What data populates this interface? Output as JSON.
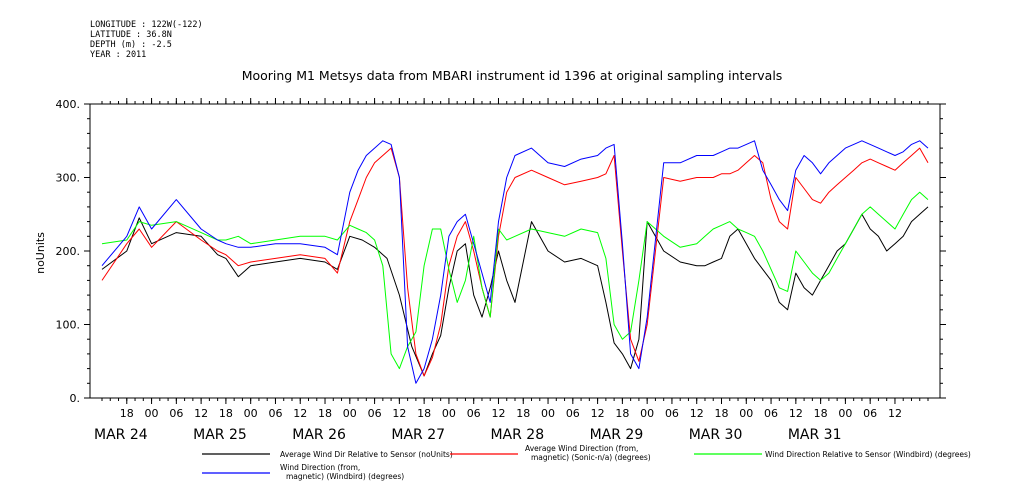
{
  "header": {
    "longitude": "LONGITUDE : 122W(-122)",
    "latitude": "LATITUDE : 36.8N",
    "depth": "DEPTH (m) : -2.5",
    "year": "YEAR : 2011"
  },
  "chart_data": {
    "type": "line",
    "title": "Mooring M1 Metsys data from MBARI instrument id 1396 at original sampling intervals",
    "ylabel": "noUnits",
    "ylim": [
      0,
      400
    ],
    "yticks": [
      0,
      100,
      200,
      300,
      400
    ],
    "ytick_labels": [
      "0.",
      "100.",
      "200.",
      "300.",
      "400."
    ],
    "xlim_hours": [
      0,
      200
    ],
    "x_hour_ticks": [
      {
        "h": 6,
        "label": "18"
      },
      {
        "h": 12,
        "label": "00"
      },
      {
        "h": 18,
        "label": "06"
      },
      {
        "h": 24,
        "label": "12"
      },
      {
        "h": 30,
        "label": "18"
      },
      {
        "h": 36,
        "label": "00"
      },
      {
        "h": 42,
        "label": "06"
      },
      {
        "h": 48,
        "label": "12"
      },
      {
        "h": 54,
        "label": "18"
      },
      {
        "h": 60,
        "label": "00"
      },
      {
        "h": 66,
        "label": "06"
      },
      {
        "h": 72,
        "label": "12"
      },
      {
        "h": 78,
        "label": "18"
      },
      {
        "h": 84,
        "label": "00"
      },
      {
        "h": 90,
        "label": "06"
      },
      {
        "h": 96,
        "label": "12"
      },
      {
        "h": 102,
        "label": "18"
      },
      {
        "h": 108,
        "label": "00"
      },
      {
        "h": 114,
        "label": "06"
      },
      {
        "h": 120,
        "label": "12"
      },
      {
        "h": 126,
        "label": "18"
      },
      {
        "h": 132,
        "label": "00"
      },
      {
        "h": 138,
        "label": "06"
      },
      {
        "h": 144,
        "label": "12"
      },
      {
        "h": 150,
        "label": "18"
      },
      {
        "h": 156,
        "label": "00"
      },
      {
        "h": 162,
        "label": "06"
      },
      {
        "h": 168,
        "label": "12"
      },
      {
        "h": 174,
        "label": "18"
      },
      {
        "h": 180,
        "label": "00"
      },
      {
        "h": 186,
        "label": "06"
      },
      {
        "h": 192,
        "label": "12"
      }
    ],
    "x_date_labels": [
      {
        "h": 0,
        "label": "MAR 24"
      },
      {
        "h": 24,
        "label": "MAR 25"
      },
      {
        "h": 48,
        "label": "MAR 26"
      },
      {
        "h": 72,
        "label": "MAR 27"
      },
      {
        "h": 96,
        "label": "MAR 28"
      },
      {
        "h": 120,
        "label": "MAR 29"
      },
      {
        "h": 144,
        "label": "MAR 30"
      },
      {
        "h": 168,
        "label": "MAR 31"
      }
    ],
    "series": [
      {
        "name": "Average Wind Dir Relative to Sensor (noUnits)",
        "color": "#000000",
        "x": [
          0,
          6,
          9,
          12,
          18,
          24,
          28,
          30,
          33,
          36,
          42,
          48,
          54,
          57,
          60,
          63,
          66,
          69,
          72,
          75,
          78,
          80,
          82,
          84,
          86,
          88,
          90,
          92,
          94,
          96,
          98,
          100,
          104,
          108,
          112,
          116,
          120,
          122,
          124,
          126,
          128,
          130,
          132,
          136,
          140,
          144,
          146,
          148,
          150,
          152,
          154,
          156,
          158,
          160,
          162,
          164,
          166,
          168,
          170,
          172,
          174,
          176,
          178,
          180,
          182,
          184,
          186,
          188,
          190,
          192,
          194,
          196,
          198,
          200
        ],
        "y": [
          175,
          200,
          245,
          210,
          225,
          220,
          195,
          190,
          165,
          180,
          185,
          190,
          185,
          175,
          220,
          215,
          205,
          190,
          140,
          70,
          30,
          60,
          85,
          150,
          200,
          210,
          140,
          110,
          150,
          200,
          160,
          130,
          240,
          200,
          185,
          190,
          180,
          130,
          75,
          60,
          40,
          80,
          240,
          200,
          185,
          180,
          180,
          185,
          190,
          220,
          230,
          210,
          190,
          175,
          160,
          130,
          120,
          170,
          150,
          140,
          160,
          180,
          200,
          210,
          230,
          250,
          230,
          220,
          200,
          210,
          220,
          240,
          250,
          260
        ]
      },
      {
        "name": "Average Wind Direction (from, magnetic) (Sonic-n/a) (degrees)",
        "color": "#ff0000",
        "x": [
          0,
          6,
          9,
          12,
          18,
          24,
          28,
          30,
          33,
          36,
          42,
          48,
          54,
          57,
          60,
          62,
          64,
          66,
          68,
          70,
          72,
          74,
          76,
          78,
          80,
          82,
          84,
          86,
          88,
          90,
          92,
          94,
          96,
          98,
          100,
          104,
          108,
          112,
          116,
          120,
          122,
          124,
          126,
          128,
          130,
          132,
          136,
          140,
          144,
          146,
          148,
          150,
          152,
          154,
          156,
          158,
          160,
          162,
          164,
          166,
          168,
          170,
          172,
          174,
          176,
          178,
          180,
          182,
          184,
          186,
          188,
          190,
          192,
          194,
          196,
          198,
          200
        ],
        "y": [
          160,
          210,
          230,
          205,
          240,
          215,
          200,
          195,
          180,
          185,
          190,
          195,
          190,
          170,
          240,
          270,
          300,
          320,
          330,
          340,
          300,
          150,
          60,
          30,
          55,
          100,
          180,
          220,
          240,
          200,
          150,
          110,
          220,
          280,
          300,
          310,
          300,
          290,
          295,
          300,
          305,
          330,
          200,
          80,
          50,
          100,
          300,
          295,
          300,
          300,
          300,
          305,
          305,
          310,
          320,
          330,
          320,
          270,
          240,
          230,
          300,
          285,
          270,
          265,
          280,
          290,
          300,
          310,
          320,
          325,
          320,
          315,
          310,
          320,
          330,
          340,
          320
        ]
      },
      {
        "name": "Wind Direction Relative to Sensor (Windbird) (degrees)",
        "color": "#00ff00",
        "x": [
          0,
          6,
          9,
          12,
          18,
          24,
          28,
          30,
          33,
          36,
          42,
          48,
          54,
          57,
          60,
          62,
          64,
          66,
          68,
          70,
          72,
          74,
          76,
          78,
          80,
          82,
          84,
          86,
          88,
          90,
          92,
          94,
          96,
          98,
          100,
          104,
          108,
          112,
          116,
          120,
          122,
          124,
          126,
          128,
          130,
          132,
          136,
          140,
          144,
          146,
          148,
          150,
          152,
          154,
          156,
          158,
          160,
          162,
          164,
          166,
          168,
          170,
          172,
          174,
          176,
          178,
          180,
          182,
          184,
          186,
          188,
          190,
          192,
          194,
          196,
          198,
          200
        ],
        "y": [
          210,
          215,
          240,
          235,
          240,
          225,
          215,
          215,
          220,
          210,
          215,
          220,
          220,
          215,
          235,
          230,
          225,
          215,
          180,
          60,
          40,
          70,
          90,
          180,
          230,
          230,
          175,
          130,
          160,
          220,
          150,
          110,
          230,
          215,
          220,
          230,
          225,
          220,
          230,
          225,
          190,
          100,
          80,
          90,
          160,
          240,
          220,
          205,
          210,
          220,
          230,
          235,
          240,
          230,
          225,
          220,
          200,
          175,
          150,
          145,
          200,
          185,
          170,
          160,
          170,
          190,
          210,
          230,
          250,
          260,
          250,
          240,
          230,
          250,
          270,
          280,
          270
        ]
      },
      {
        "name": "Wind Direction (from, magnetic) (Windbird) (degrees)",
        "color": "#0000ff",
        "x": [
          0,
          6,
          9,
          12,
          18,
          24,
          28,
          30,
          33,
          36,
          42,
          48,
          54,
          57,
          60,
          62,
          64,
          66,
          68,
          70,
          72,
          74,
          76,
          78,
          80,
          82,
          84,
          86,
          88,
          90,
          92,
          94,
          96,
          98,
          100,
          104,
          108,
          112,
          116,
          120,
          122,
          124,
          126,
          128,
          130,
          132,
          136,
          140,
          144,
          146,
          148,
          150,
          152,
          154,
          156,
          158,
          160,
          162,
          164,
          166,
          168,
          170,
          172,
          174,
          176,
          178,
          180,
          182,
          184,
          186,
          188,
          190,
          192,
          194,
          196,
          198,
          200
        ],
        "y": [
          180,
          220,
          260,
          230,
          270,
          230,
          215,
          210,
          205,
          205,
          210,
          210,
          205,
          195,
          280,
          310,
          330,
          340,
          350,
          345,
          300,
          70,
          20,
          40,
          80,
          140,
          220,
          240,
          250,
          210,
          170,
          130,
          240,
          300,
          330,
          340,
          320,
          315,
          325,
          330,
          340,
          345,
          210,
          60,
          40,
          110,
          320,
          320,
          330,
          330,
          330,
          335,
          340,
          340,
          345,
          350,
          310,
          290,
          270,
          255,
          310,
          330,
          320,
          305,
          320,
          330,
          340,
          345,
          350,
          345,
          340,
          335,
          330,
          335,
          345,
          350,
          340
        ]
      }
    ]
  },
  "legend": [
    {
      "line1": "Average Wind Dir Relative to Sensor (noUnits)",
      "line2": "",
      "color": "#000000"
    },
    {
      "line1": "Average Wind Direction (from,",
      "line2": "magnetic) (Sonic-n/a) (degrees)",
      "color": "#ff0000"
    },
    {
      "line1": "Wind Direction Relative to Sensor (Windbird) (degrees)",
      "line2": "",
      "color": "#00ff00"
    },
    {
      "line1": "Wind Direction (from,",
      "line2": "magnetic) (Windbird) (degrees)",
      "color": "#0000ff"
    }
  ]
}
